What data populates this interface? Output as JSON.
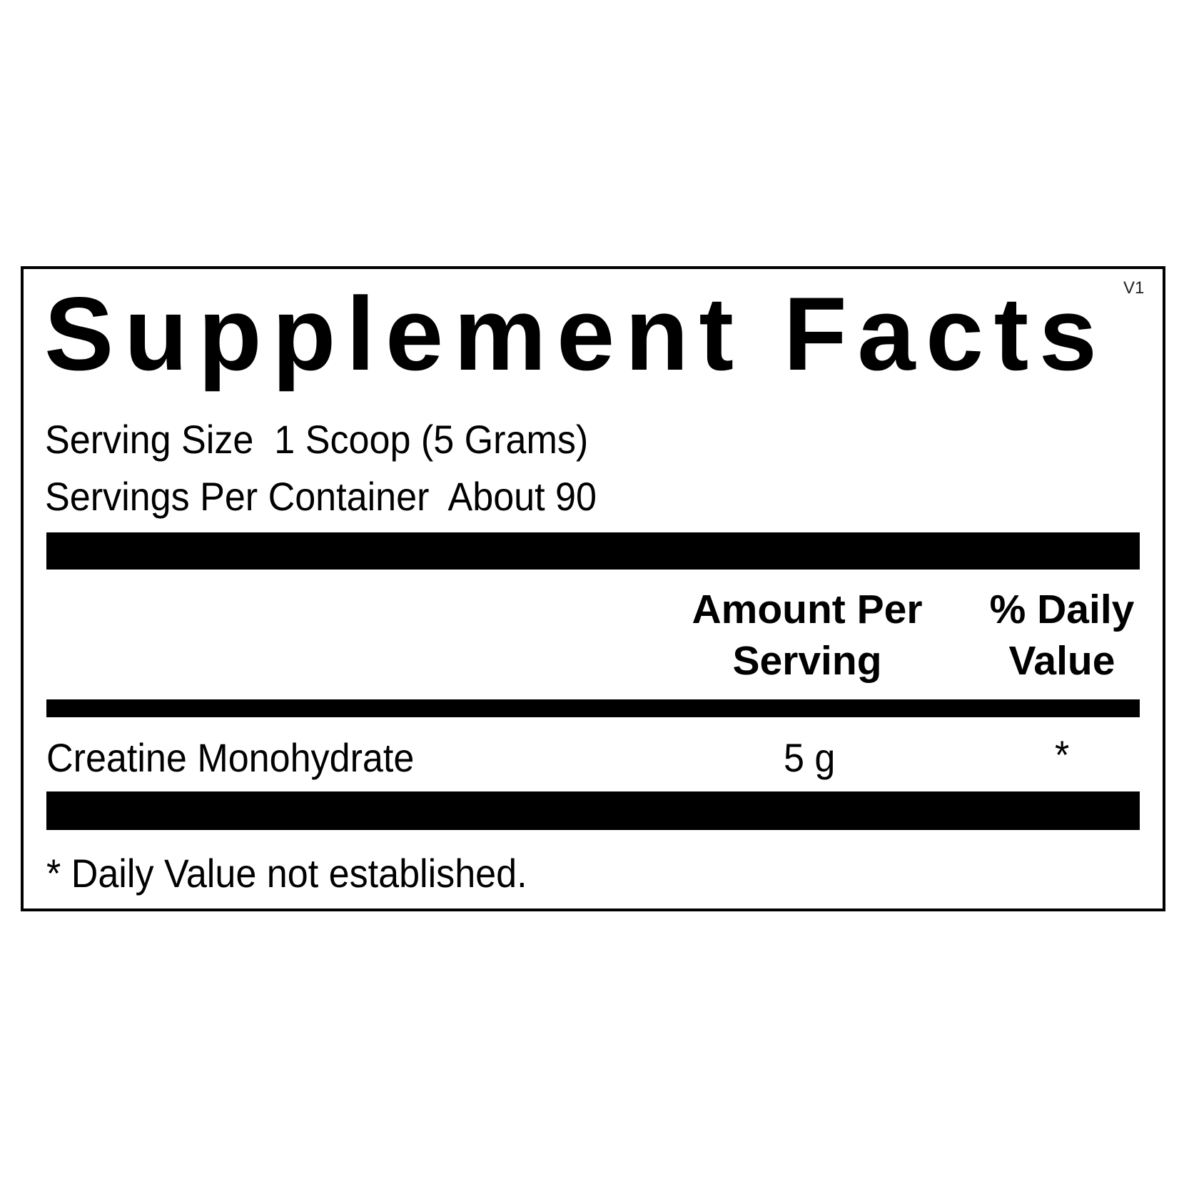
{
  "label": {
    "title": "Supplement Facts",
    "version": "V1",
    "serving_size": "Serving Size  1 Scoop (5 Grams)",
    "servings_per_container": "Servings Per Container  About 90",
    "columns": {
      "amount_line1": "Amount Per",
      "amount_line2": "Serving",
      "dv_line1": "% Daily",
      "dv_line2": "Value"
    },
    "rows": [
      {
        "ingredient": "Creatine Monohydrate",
        "amount": "5 g",
        "daily_value": "*"
      }
    ],
    "footnote": "* Daily Value not established."
  }
}
